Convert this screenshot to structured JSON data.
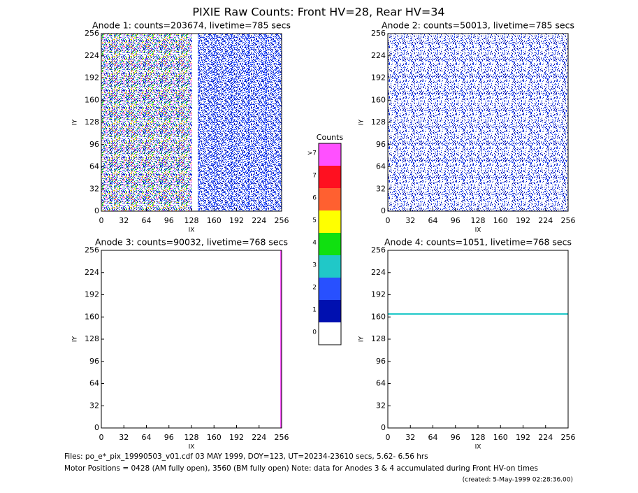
{
  "title": "PIXIE Raw Counts:  Front HV=28, Rear HV=34",
  "chart_data": [
    {
      "type": "heatmap",
      "title": "Anode 1: counts=203674, livetime=785 secs",
      "xlabel": "IX",
      "ylabel": "IY",
      "xlim": [
        0,
        256
      ],
      "ylim": [
        0,
        256
      ],
      "xticks": [
        0,
        32,
        64,
        96,
        128,
        160,
        192,
        224,
        256
      ],
      "yticks": [
        0,
        32,
        64,
        96,
        128,
        160,
        192,
        224,
        256
      ]
    },
    {
      "type": "heatmap",
      "title": "Anode 2: counts=50013, livetime=785 secs",
      "xlabel": "IX",
      "ylabel": "IY",
      "xlim": [
        0,
        256
      ],
      "ylim": [
        0,
        256
      ],
      "xticks": [
        0,
        32,
        64,
        96,
        128,
        160,
        192,
        224,
        256
      ],
      "yticks": [
        0,
        32,
        64,
        96,
        128,
        160,
        192,
        224,
        256
      ]
    },
    {
      "type": "heatmap",
      "title": "Anode 3: counts=90032, livetime=768 secs",
      "xlabel": "IX",
      "ylabel": "IY",
      "xlim": [
        0,
        256
      ],
      "ylim": [
        0,
        256
      ],
      "xticks": [
        0,
        32,
        64,
        96,
        128,
        160,
        192,
        224,
        256
      ],
      "yticks": [
        0,
        32,
        64,
        96,
        128,
        160,
        192,
        224,
        256
      ]
    },
    {
      "type": "heatmap",
      "title": "Anode 4: counts=1051, livetime=768 secs",
      "xlabel": "IX",
      "ylabel": "IY",
      "xlim": [
        0,
        256
      ],
      "ylim": [
        0,
        256
      ],
      "xticks": [
        0,
        32,
        64,
        96,
        128,
        160,
        192,
        224,
        256
      ],
      "yticks": [
        0,
        32,
        64,
        96,
        128,
        160,
        192,
        224,
        256
      ]
    },
    {
      "type": "colorbar",
      "title": "Counts",
      "categories": [
        "0",
        "1",
        "2",
        "3",
        "4",
        "5",
        "6",
        "7",
        ">7"
      ],
      "colors": [
        "#ffffff",
        "#0010b0",
        "#2850ff",
        "#20c8c8",
        "#10e010",
        "#ffff00",
        "#ff6030",
        "#ff1020",
        "#ff50ff"
      ]
    }
  ],
  "footer": [
    "Files: po_e*_pix_19990503_v01.cdf   03 MAY 1999, DOY=123, UT=20234-23610 secs,  5.62- 6.56 hrs",
    "Motor Positions = 0428 (AM fully open), 3560 (BM fully open)    Note: data for Anodes 3 & 4 accumulated during Front HV-on times",
    "(created:  5-May-1999 02:28:36.00)"
  ]
}
